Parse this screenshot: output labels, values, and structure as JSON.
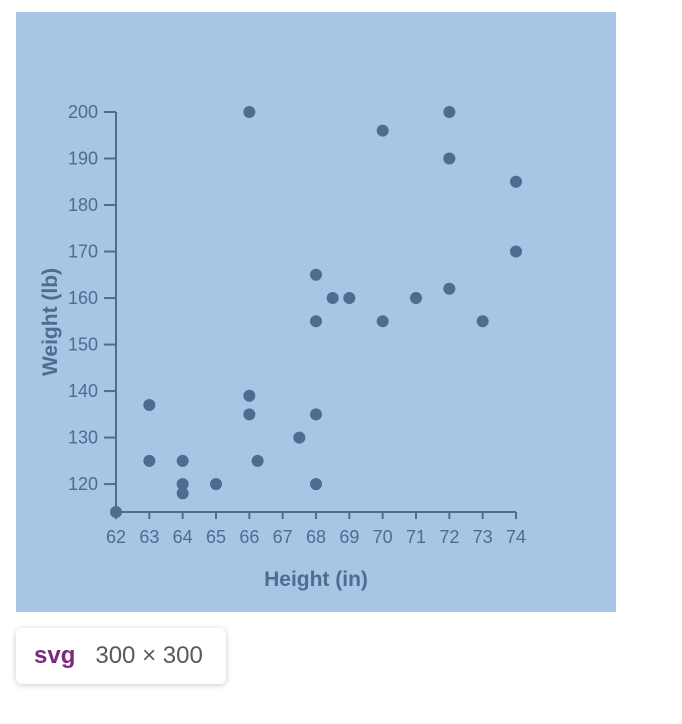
{
  "chart_data": {
    "type": "scatter",
    "title": "",
    "xlabel": "Height (in)",
    "ylabel": "Weight (lb)",
    "xlim": [
      62,
      74
    ],
    "ylim": [
      114,
      200
    ],
    "x_ticks": [
      62,
      63,
      64,
      65,
      66,
      67,
      68,
      69,
      70,
      71,
      72,
      73,
      74
    ],
    "y_ticks": [
      120,
      130,
      140,
      150,
      160,
      170,
      180,
      190,
      200
    ],
    "grid": false,
    "colors": {
      "background": "#a7c5e5",
      "points": "#4e6c8e",
      "axes": "#4e6c8e"
    },
    "points": [
      {
        "x": 62,
        "y": 114
      },
      {
        "x": 63,
        "y": 137
      },
      {
        "x": 63,
        "y": 125
      },
      {
        "x": 64,
        "y": 125
      },
      {
        "x": 64,
        "y": 120
      },
      {
        "x": 64,
        "y": 118
      },
      {
        "x": 65,
        "y": 120
      },
      {
        "x": 66,
        "y": 200
      },
      {
        "x": 66,
        "y": 139
      },
      {
        "x": 66,
        "y": 135
      },
      {
        "x": 66.25,
        "y": 125
      },
      {
        "x": 67.5,
        "y": 130
      },
      {
        "x": 68,
        "y": 165
      },
      {
        "x": 68,
        "y": 155
      },
      {
        "x": 68,
        "y": 135
      },
      {
        "x": 68,
        "y": 120
      },
      {
        "x": 68.5,
        "y": 160
      },
      {
        "x": 69,
        "y": 160
      },
      {
        "x": 70,
        "y": 196
      },
      {
        "x": 70,
        "y": 155
      },
      {
        "x": 71,
        "y": 160
      },
      {
        "x": 72,
        "y": 200
      },
      {
        "x": 72,
        "y": 190
      },
      {
        "x": 72,
        "y": 162
      },
      {
        "x": 73,
        "y": 155
      },
      {
        "x": 74,
        "y": 185
      },
      {
        "x": 74,
        "y": 170
      }
    ]
  },
  "inspector_tooltip": {
    "tag": "svg",
    "dimensions": "300 × 300"
  }
}
